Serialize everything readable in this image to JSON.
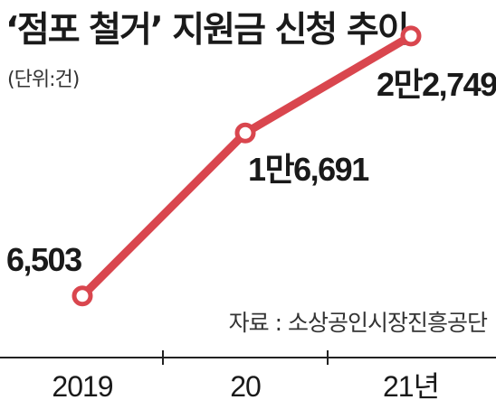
{
  "title": "‘점포 철거’ 지원금 신청 추이",
  "unit": "(단위:건)",
  "source": "자료 : 소상공인시장진흥공단",
  "colors": {
    "line": "#d9464e",
    "axis": "#222222",
    "marker_fill": "#ffffff"
  },
  "chart_data": {
    "type": "line",
    "title": "‘점포 철거’ 지원금 신청 추이",
    "xlabel": "",
    "ylabel": "",
    "categories": [
      "2019",
      "20",
      "21년"
    ],
    "values": [
      6503,
      16691,
      22749
    ],
    "data_labels": [
      "6,503",
      "1만6,691",
      "2만2,749"
    ],
    "ylim": [
      0,
      25000
    ],
    "grid": false,
    "legend": "none"
  }
}
